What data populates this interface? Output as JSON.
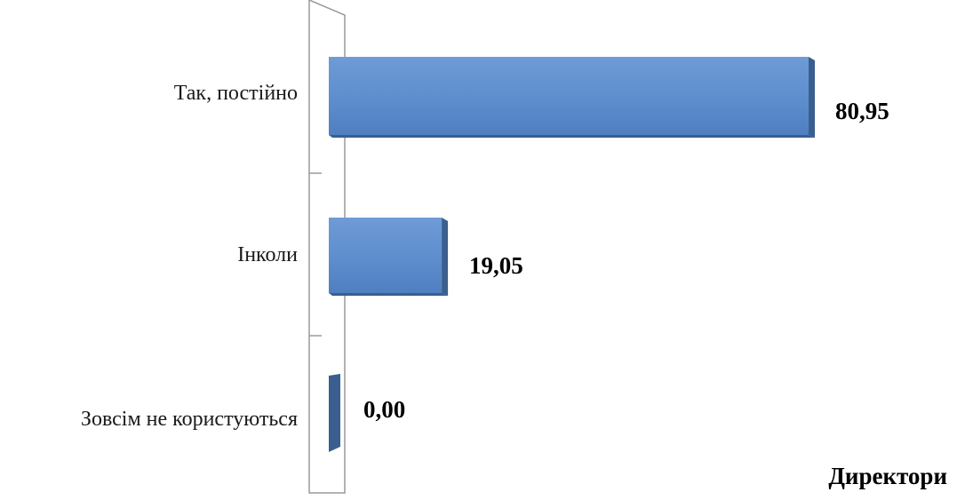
{
  "chart_data": {
    "type": "bar",
    "orientation": "horizontal",
    "title": "",
    "categories": [
      "Так, постійно",
      "Інколи",
      "Зовсім не користуються"
    ],
    "series": [
      {
        "name": "Директори",
        "values": [
          80.95,
          19.05,
          0.0
        ],
        "value_labels": [
          "80,95",
          "19,05",
          "0,00"
        ]
      }
    ],
    "xlim": [
      0,
      80.95
    ],
    "grid": false,
    "legend_position": "bottom-right",
    "colors": {
      "bar": "#5b8ccc",
      "bar_dark": "#3a5f8f",
      "axis": "#9a9a9a"
    },
    "style": "3d"
  }
}
